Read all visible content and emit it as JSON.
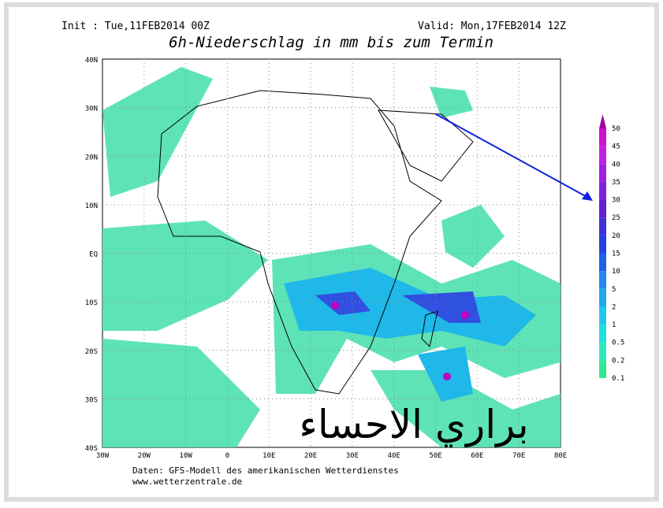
{
  "header": {
    "init": "Init : Tue,11FEB2014 00Z",
    "valid": "Valid: Mon,17FEB2014 12Z",
    "title": "6h-Niederschlag in mm bis zum Termin"
  },
  "map": {
    "lat_labels": [
      "40N",
      "30N",
      "20N",
      "10N",
      "EQ",
      "10S",
      "20S",
      "30S",
      "40S"
    ],
    "lon_labels": [
      "30W",
      "20W",
      "10W",
      "0",
      "10E",
      "20E",
      "30E",
      "40E",
      "50E",
      "60E",
      "70E",
      "80E"
    ]
  },
  "colorbar": {
    "levels": [
      "0.1",
      "0.2",
      "0.5",
      "1",
      "2",
      "5",
      "10",
      "15",
      "20",
      "25",
      "30",
      "35",
      "40",
      "45",
      "50"
    ]
  },
  "footer": {
    "source": "Daten: GFS-Modell des amerikanischen Wetterdienstes",
    "url": "www.wetterzentrale.de"
  },
  "overlay": {
    "text": "براري الاحساء"
  }
}
